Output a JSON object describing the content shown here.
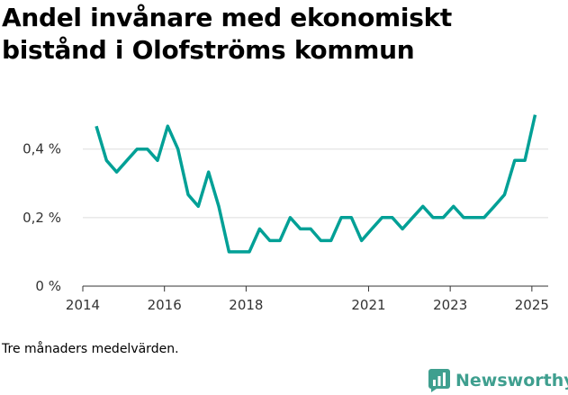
{
  "chart_data": {
    "type": "line",
    "title": "Andel invånare med ekonomiskt bistånd i Olofströms kommun",
    "note": "Tre månaders medelvärden.",
    "y_tick_labels": [
      "0 %",
      "0,2 %",
      "0,4 %"
    ],
    "y_ticks": [
      0,
      0.2,
      0.4
    ],
    "x_tick_labels": [
      "2014",
      "2016",
      "2018",
      "2021",
      "2023",
      "2025"
    ],
    "x_ticks": [
      2014,
      2016,
      2018,
      2021,
      2023,
      2025
    ],
    "xlim": [
      2014,
      2025.4
    ],
    "ylim": [
      0,
      0.52
    ],
    "grid": true,
    "line_color": "#00a096",
    "series": [
      {
        "x": [
          2014.33,
          2014.58,
          2014.83,
          2015.08,
          2015.33,
          2015.58,
          2015.83,
          2016.08,
          2016.33,
          2016.58,
          2016.83,
          2017.08,
          2017.33,
          2017.58,
          2017.83,
          2018.08,
          2018.33,
          2018.58,
          2018.83,
          2019.08,
          2019.33,
          2019.58,
          2019.83,
          2020.08,
          2020.33,
          2020.58,
          2020.83,
          2021.08,
          2021.33,
          2021.58,
          2021.83,
          2022.08,
          2022.33,
          2022.58,
          2022.83,
          2023.08,
          2023.33,
          2023.58,
          2023.83,
          2024.08,
          2024.33,
          2024.58,
          2024.83,
          2025.08
        ],
        "values": [
          0.467,
          0.367,
          0.333,
          0.367,
          0.4,
          0.4,
          0.367,
          0.467,
          0.4,
          0.267,
          0.233,
          0.333,
          0.233,
          0.1,
          0.1,
          0.1,
          0.167,
          0.133,
          0.133,
          0.2,
          0.167,
          0.167,
          0.133,
          0.133,
          0.2,
          0.2,
          0.133,
          0.167,
          0.2,
          0.2,
          0.167,
          0.2,
          0.233,
          0.2,
          0.2,
          0.233,
          0.2,
          0.2,
          0.2,
          0.233,
          0.267,
          0.367,
          0.367,
          0.5
        ]
      }
    ]
  },
  "brand": {
    "name": "Newsworthy",
    "color": "#3f9f8f",
    "icon": "bar-chart-icon"
  }
}
